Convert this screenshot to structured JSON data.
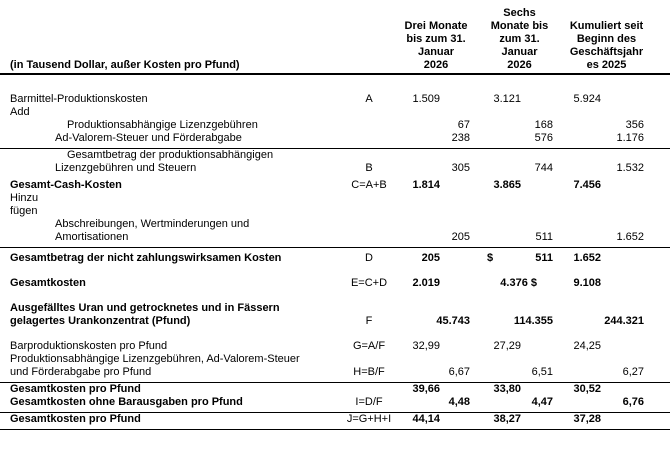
{
  "header": {
    "unit_label": "(in Tausend Dollar, außer Kosten pro Pfund)",
    "columns": [
      {
        "lines": [
          "Drei Monate",
          "bis zum 31.",
          "Januar",
          "2026"
        ]
      },
      {
        "lines": [
          "Sechs",
          "Monate bis",
          "zum 31.",
          "Januar",
          "2026"
        ]
      },
      {
        "lines": [
          "Kumuliert seit",
          "Beginn des",
          "Geschäftsjahr",
          "es 2025"
        ]
      }
    ]
  },
  "table": {
    "rows": [
      {
        "id": "barmittel-produktionskosten",
        "gap_before": "large",
        "label_lines": [
          {
            "text": "Barmittel-Produktionskosten",
            "indent": 0
          }
        ],
        "formula": "A",
        "values": {
          "c1a": "1.509",
          "c2a": "3.121",
          "c3a": "5.924"
        }
      },
      {
        "id": "add",
        "label_lines": [
          {
            "text": "Add",
            "indent": 0
          }
        ]
      },
      {
        "id": "produktionsabhaengige-lizenzgebuehren",
        "label_lines": [
          {
            "text": "Produktionsabhängige Lizenzgebühren",
            "indent": 2
          }
        ],
        "values": {
          "c1b": "67",
          "c2b": "168",
          "c3b": "356"
        }
      },
      {
        "id": "ad-valorem-steuer",
        "rule_below": true,
        "label_lines": [
          {
            "text": "Ad-Valorem-Steuer und Förderabgabe",
            "indent": 1
          }
        ],
        "values": {
          "c1b": "238",
          "c2b": "576",
          "c3b": "1.176"
        }
      },
      {
        "id": "gesamtbetrag-lizenzgebuehren-steuern",
        "label_lines": [
          {
            "text": "Gesamtbetrag der produktionsabhängigen",
            "indent": 2
          },
          {
            "text": "Lizenzgebühren und Steuern",
            "indent": 1
          }
        ],
        "formula": "B",
        "values": {
          "c1b": "305",
          "c2b": "744",
          "c3b": "1.532"
        }
      },
      {
        "id": "gesamt-cash-kosten",
        "gap_before": "small",
        "bold_label": true,
        "bold_values": true,
        "label_lines": [
          {
            "text": "Gesamt-Cash-Kosten",
            "indent": 0
          }
        ],
        "formula": "C=A+B",
        "values": {
          "c1a": "1.814",
          "c2a": "3.865",
          "c3a": "7.456"
        }
      },
      {
        "id": "hinzu-fuegen",
        "label_lines": [
          {
            "text": "Hinzu",
            "indent": 0
          },
          {
            "text": "fügen",
            "indent": 0
          }
        ]
      },
      {
        "id": "abschreibungen-amortisationen",
        "rule_below": true,
        "label_lines": [
          {
            "text": "Abschreibungen, Wertminderungen und",
            "indent": 1
          },
          {
            "text": "Amortisationen",
            "indent": 1
          }
        ],
        "values": {
          "c1b": "205",
          "c2b": "511",
          "c3b": "1.652"
        }
      },
      {
        "id": "nicht-zahlungswirksame-kosten",
        "gap_before": "small",
        "bold_label": true,
        "bold_values": true,
        "label_lines": [
          {
            "text": "Gesamtbetrag der nicht zahlungswirksamen Kosten",
            "indent": 0
          }
        ],
        "formula": "D",
        "values": {
          "c1a": "205",
          "c2a": "$",
          "c2b": "511",
          "c3a": "1.652"
        },
        "left_align_slots": [
          "c2a"
        ]
      },
      {
        "id": "gesamtkosten",
        "gap_before": "medium",
        "bold_label": true,
        "bold_values": true,
        "label_lines": [
          {
            "text": "Gesamtkosten",
            "indent": 0
          }
        ],
        "formula": "E=C+D",
        "values": {
          "c1a": "2.019",
          "c2m": "4.376 $",
          "c3a": "9.108"
        }
      },
      {
        "id": "ausgefaelltes-uran",
        "gap_before": "medium",
        "bold_label": true,
        "bold_values": true,
        "label_lines": [
          {
            "text": "Ausgefälltes Uran und getrocknetes und in Fässern",
            "indent": 0
          },
          {
            "text": "gelagertes Urankonzentrat (Pfund)",
            "indent": 0
          }
        ],
        "formula": "F",
        "values": {
          "c1b": "45.743",
          "c2b": "114.355",
          "c3b": "244.321"
        }
      },
      {
        "id": "barproduktionskosten-pro-pfund",
        "gap_before": "medium",
        "label_lines": [
          {
            "text": "Barproduktionskosten pro Pfund",
            "indent": 0
          }
        ],
        "formula": "G=A/F",
        "values": {
          "c1a": "32,99",
          "c2a": "27,29",
          "c3a": "24,25"
        }
      },
      {
        "id": "lizenzgebuehren-pro-pfund",
        "rule_below": true,
        "label_lines": [
          {
            "text": "Produktionsabhängige Lizenzgebühren, Ad-Valorem-Steuer",
            "indent": 0
          },
          {
            "text": "und Förderabgabe pro Pfund",
            "indent": 0
          }
        ],
        "formula": "H=B/F",
        "values": {
          "c1b": "6,67",
          "c2b": "6,51",
          "c3b": "6,27"
        }
      },
      {
        "id": "gesamtkosten-pro-pfund",
        "bold_label": true,
        "bold_values": true,
        "label_lines": [
          {
            "text": "Gesamtkosten pro Pfund",
            "indent": 0
          }
        ],
        "values": {
          "c1a": "39,66",
          "c2a": "33,80",
          "c3a": "30,52"
        }
      },
      {
        "id": "gesamtkosten-ohne-barausgaben-pro-pfund",
        "rule_below": true,
        "bold_label": true,
        "bold_values": true,
        "label_lines": [
          {
            "text": "Gesamtkosten ohne Barausgaben pro Pfund",
            "indent": 0
          }
        ],
        "formula": "I=D/F",
        "values": {
          "c1b": "4,48",
          "c2b": "4,47",
          "c3b": "6,76"
        }
      },
      {
        "id": "gesamtkosten-pro-pfund-gesamt",
        "rule_below": true,
        "bold_label": true,
        "bold_values": true,
        "label_lines": [
          {
            "text": "Gesamtkosten pro Pfund",
            "indent": 0
          }
        ],
        "formula": "J=G+H+I",
        "values": {
          "c1a": "44,14",
          "c2a": "38,27",
          "c3a": "37,28"
        }
      }
    ]
  }
}
